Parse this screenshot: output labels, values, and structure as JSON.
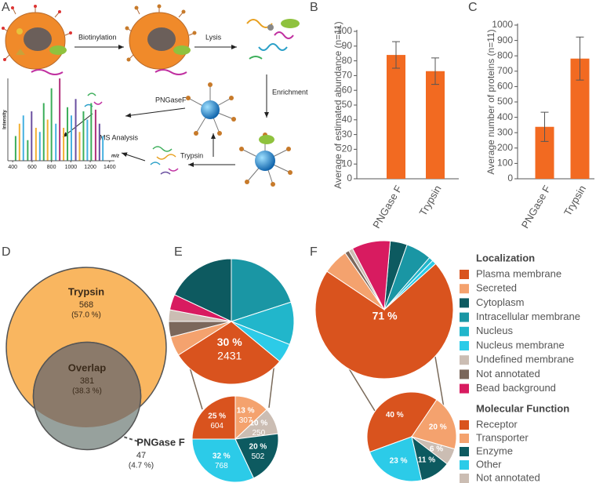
{
  "panel_labels": [
    "A",
    "B",
    "C",
    "D",
    "E",
    "F"
  ],
  "panel_a": {
    "steps": [
      "Biotinylation",
      "Lysis",
      "Enrichment",
      "PNGaseF",
      "MS Analysis",
      "Trypsin"
    ]
  },
  "legends": [
    {
      "title": "Localization",
      "names": [
        "Plasma membrane",
        "Secreted",
        "Cytoplasm",
        "Intracellular membrane",
        "Nucleus",
        "Nucleus membrane",
        "Undefined membrane",
        "Not annotated",
        "Bead background"
      ],
      "colors": [
        "#d9531e",
        "#f4a26e",
        "#0d5a60",
        "#1a96a4",
        "#21b6cb",
        "#2ccbe8",
        "#cbbdb3",
        "#7b675b",
        "#d81b60"
      ]
    },
    {
      "title": "Molecular Function",
      "names": [
        "Receptor",
        "Transporter",
        "Enzyme",
        "Other",
        "Not annotated"
      ],
      "colors": [
        "#d9531e",
        "#f4a26e",
        "#0d5a60",
        "#2ccbe8",
        "#cbbdb3"
      ]
    }
  ],
  "chart_data": [
    {
      "type": "spectrum",
      "xlabel": "m/z",
      "ylabel": "Intensity",
      "x": [
        430,
        470,
        510,
        555,
        595,
        640,
        680,
        720,
        760,
        800,
        845,
        885,
        925,
        965,
        1005,
        1050,
        1090,
        1130,
        1170,
        1210,
        1255,
        1295,
        1330
      ],
      "values": [
        30,
        45,
        55,
        25,
        60,
        40,
        35,
        70,
        50,
        88,
        45,
        100,
        40,
        65,
        55,
        75,
        35,
        60,
        50,
        70,
        62,
        45,
        30
      ],
      "colors": [
        "#3cae5a",
        "#f2b134",
        "#45b0e0",
        "#3cae5a",
        "#6a4fa0",
        "#f2b134",
        "#45b0e0",
        "#3cae5a",
        "#f2b134",
        "#3cae5a",
        "#45b0e0",
        "#b0307a",
        "#f2b134",
        "#3cae5a",
        "#45b0e0",
        "#6a4fa0",
        "#f2b134",
        "#3cae5a",
        "#45b0e0",
        "#3cae5a",
        "#b0307a",
        "#6a4fa0",
        "#45b0e0"
      ],
      "xlim": [
        350,
        1450
      ],
      "ylim": [
        0,
        100
      ],
      "xticks": [
        400,
        600,
        800,
        1000,
        1200,
        1400
      ]
    },
    {
      "type": "bar",
      "ylabel": "Average of estimated abundance (n=11)",
      "categories": [
        "PNGase F",
        "Trypsin"
      ],
      "values": [
        84,
        73
      ],
      "errors": [
        9,
        9
      ],
      "color": "#f26a21",
      "ylim": [
        0,
        100
      ],
      "yticks": [
        0,
        10,
        20,
        30,
        40,
        50,
        60,
        70,
        80,
        90,
        100
      ]
    },
    {
      "type": "bar",
      "ylabel": "Average number of proteins (n=11)",
      "categories": [
        "PNGase F",
        "Trypsin"
      ],
      "values": [
        338,
        782
      ],
      "errors": [
        95,
        140
      ],
      "color": "#f26a21",
      "ylim": [
        0,
        1000
      ],
      "yticks": [
        0,
        100,
        200,
        300,
        400,
        500,
        600,
        700,
        800,
        900,
        1000
      ]
    },
    {
      "type": "venn",
      "categories": [
        "Trypsin",
        "Overlap",
        "PNGase F"
      ],
      "values": [
        568,
        381,
        47
      ],
      "percents": [
        57.0,
        38.3,
        4.7
      ],
      "percent_labels": [
        "(57.0 %)",
        "(38.3 %)",
        "(4.7 %)"
      ],
      "colors": [
        "#f9b660",
        "#8b7a6a",
        "#97a19d"
      ]
    },
    {
      "type": "pie",
      "values": [
        30,
        5,
        18,
        20,
        11,
        5,
        3,
        4,
        4
      ],
      "value_labels": [
        "30 %",
        null,
        null,
        null,
        null,
        null,
        null,
        null,
        null
      ],
      "counts": [
        2431,
        null,
        null,
        null,
        null,
        null,
        null,
        null,
        null
      ]
    },
    {
      "type": "pie",
      "values": [
        25,
        13,
        20,
        32,
        10
      ],
      "value_labels": [
        "25 %",
        "13 %",
        "20 %",
        "32 %",
        "10 %"
      ],
      "counts": [
        604,
        307,
        502,
        768,
        250
      ]
    },
    {
      "type": "pie",
      "values": [
        71,
        6,
        4,
        6,
        1,
        1,
        1,
        1,
        9
      ],
      "value_labels": [
        "71 %",
        null,
        null,
        null,
        null,
        null,
        null,
        null,
        null
      ]
    },
    {
      "type": "pie",
      "values": [
        40,
        20,
        11,
        23,
        6
      ],
      "value_labels": [
        "40 %",
        "20 %",
        "11 %",
        "23 %",
        "6 %"
      ]
    }
  ]
}
